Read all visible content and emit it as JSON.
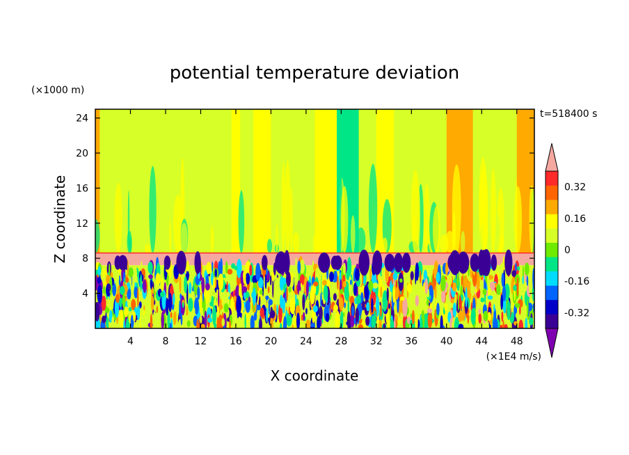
{
  "chart_data": {
    "type": "heatmap",
    "title": "potential temperature deviation",
    "time_label": "t=518400 s",
    "xlabel": "X coordinate",
    "ylabel": "Z coordinate",
    "x_unit": "(×1E4 m/s)",
    "y_unit": "(×1000 m)",
    "xlim": [
      0,
      50
    ],
    "ylim": [
      0,
      25
    ],
    "x_ticks": [
      "4",
      "8",
      "12",
      "16",
      "20",
      "24",
      "28",
      "32",
      "36",
      "40",
      "44",
      "48"
    ],
    "y_ticks": [
      "4",
      "8",
      "12",
      "16",
      "20",
      "24"
    ],
    "colorbar": {
      "labels": [
        "0.32",
        "0.16",
        "0",
        "-0.16",
        "-0.32"
      ],
      "levels": [
        -0.48,
        -0.4,
        -0.32,
        -0.24,
        -0.16,
        -0.08,
        0,
        0.08,
        0.16,
        0.24,
        0.32,
        0.4,
        0.48
      ],
      "colors": [
        "#7f00b0",
        "#3a0096",
        "#0000c8",
        "#0064ff",
        "#00dcff",
        "#00e687",
        "#6eeb00",
        "#d7ff28",
        "#ffff00",
        "#ffaa00",
        "#ff6400",
        "#ff2a2a",
        "#f5a8a0"
      ]
    },
    "x_bands": [
      {
        "x": [
          0,
          0.5
        ],
        "value": 0.2
      },
      {
        "x": [
          0.5,
          3
        ],
        "value": 0.05
      },
      {
        "x": [
          3,
          4
        ],
        "value": 0.0
      },
      {
        "x": [
          4,
          15.5
        ],
        "value": 0.05
      },
      {
        "x": [
          15.5,
          16.5
        ],
        "value": 0.1
      },
      {
        "x": [
          16.5,
          18
        ],
        "value": 0.05
      },
      {
        "x": [
          18,
          20
        ],
        "value": 0.15
      },
      {
        "x": [
          20,
          23.5
        ],
        "value": 0.05
      },
      {
        "x": [
          23.5,
          25
        ],
        "value": 0.0
      },
      {
        "x": [
          25,
          27.5
        ],
        "value": 0.1
      },
      {
        "x": [
          27.5,
          30
        ],
        "value": -0.12
      },
      {
        "x": [
          30,
          32
        ],
        "value": 0.05
      },
      {
        "x": [
          32,
          34
        ],
        "value": 0.1
      },
      {
        "x": [
          34,
          40
        ],
        "value": 0.05
      },
      {
        "x": [
          40,
          43
        ],
        "value": 0.2
      },
      {
        "x": [
          43,
          48
        ],
        "value": 0.05
      },
      {
        "x": [
          48,
          50
        ],
        "value": 0.2
      }
    ],
    "inversion_layer": {
      "z": [
        7.2,
        8.6
      ],
      "value": 0.45
    },
    "turbulent_layer": {
      "z": [
        0,
        7.2
      ]
    }
  }
}
